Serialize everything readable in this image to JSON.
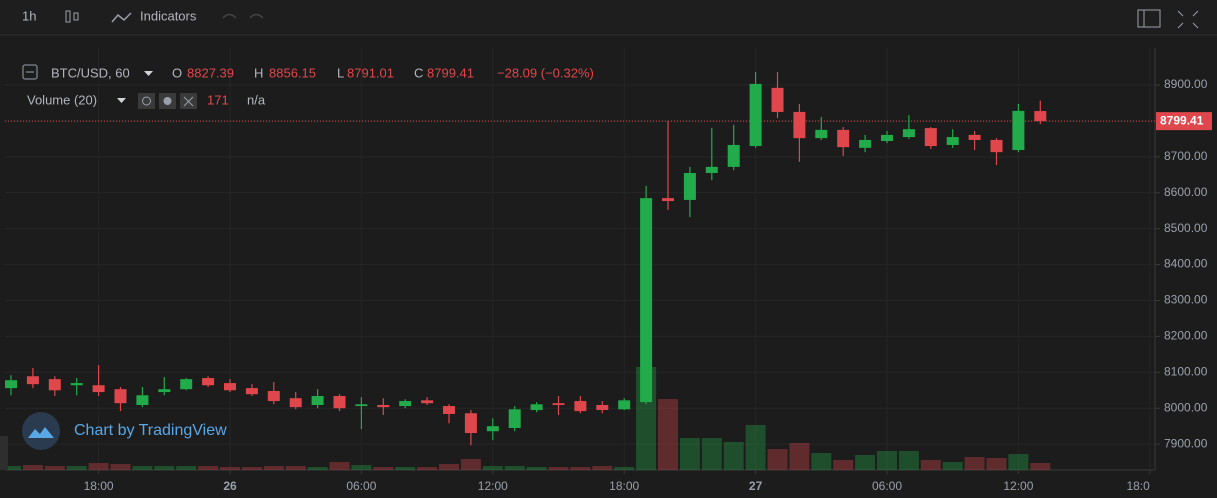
{
  "toolbar": {
    "interval": "1h",
    "indicators": "Indicators"
  },
  "legend": {
    "symbol": "BTC/USD, 60",
    "labels": [
      "O",
      "H",
      "L",
      "C"
    ],
    "change": "−28.09 (−0.32%)",
    "volume_name": "Volume (20)",
    "volume_na": "n/a"
  },
  "watermark": "Chart by TradingView",
  "chart_data": {
    "type": "candlestick",
    "categories": [
      null,
      null,
      null,
      null,
      "18:00",
      null,
      null,
      null,
      null,
      null,
      "26",
      null,
      null,
      null,
      null,
      null,
      "06:00",
      null,
      null,
      null,
      null,
      null,
      "12:00",
      null,
      null,
      null,
      null,
      null,
      "18:00",
      null,
      null,
      null,
      null,
      null,
      "27",
      null,
      null,
      null,
      null,
      null,
      "06:00",
      null,
      null,
      null,
      null,
      null,
      "12:00",
      null,
      null,
      null,
      null,
      null,
      "18:0"
    ],
    "open": [
      8056,
      8089,
      8081,
      8064,
      8064,
      8053,
      8009,
      8045,
      8053,
      8084,
      8070,
      8056,
      8048,
      8028,
      8009,
      8034,
      8006,
      8009,
      8006,
      8022,
      8006,
      7986,
      7936,
      7945,
      7995,
      8014,
      8020,
      8009,
      7997,
      8017,
      8585,
      8580,
      8655,
      8672,
      8730,
      8892,
      8825,
      8752,
      8775,
      8725,
      8744,
      8755,
      8780,
      8733,
      8761,
      8747,
      8719,
      8827.39,
      null,
      null,
      null,
      null,
      null
    ],
    "high": [
      8092,
      8112,
      8089,
      8084,
      8120,
      8059,
      8059,
      8087,
      8084,
      8089,
      8081,
      8067,
      8073,
      8045,
      8053,
      8039,
      8031,
      8028,
      8025,
      8031,
      8011,
      7995,
      7972,
      8006,
      8017,
      8034,
      8034,
      8020,
      8028,
      8619,
      8800,
      8672,
      8780,
      8789,
      8936,
      8936,
      8847,
      8811,
      8783,
      8761,
      8772,
      8816,
      8783,
      8777,
      8772,
      8752,
      8847,
      8856.15,
      null,
      null,
      null,
      null,
      null
    ],
    "low": [
      8036,
      8056,
      8034,
      8036,
      8034,
      7992,
      8003,
      8036,
      8050,
      8059,
      8045,
      8034,
      8011,
      7997,
      8000,
      7992,
      7942,
      7981,
      8000,
      8009,
      7958,
      7897,
      7911,
      7936,
      7989,
      7981,
      7986,
      7986,
      7995,
      8011,
      8552,
      8532,
      8635,
      8663,
      8725,
      8808,
      8686,
      8747,
      8702,
      8713,
      8738,
      8750,
      8722,
      8725,
      8719,
      8677,
      8713,
      8791.01,
      null,
      null,
      null,
      null,
      null
    ],
    "close": [
      8078,
      8067,
      8050,
      8070,
      8045,
      8014,
      8036,
      8053,
      8081,
      8064,
      8050,
      8039,
      8020,
      8003,
      8034,
      8000,
      8011,
      8003,
      8020,
      8014,
      7984,
      7931,
      7950,
      7997,
      8011,
      8009,
      7992,
      7995,
      8022,
      8585,
      8577,
      8655,
      8672,
      8733,
      8903,
      8825,
      8752,
      8775,
      8727,
      8747,
      8761,
      8777,
      8730,
      8755,
      8747,
      8713,
      8828,
      8799.41,
      null,
      null,
      null,
      null,
      null
    ],
    "volume": [
      98,
      122,
      98,
      98,
      171,
      146,
      98,
      98,
      98,
      98,
      73,
      73,
      98,
      98,
      73,
      195,
      122,
      73,
      73,
      73,
      146,
      268,
      98,
      98,
      73,
      73,
      73,
      98,
      73,
      2513,
      1732,
      781,
      781,
      683,
      1098,
      512,
      659,
      415,
      244,
      366,
      464,
      464,
      244,
      195,
      317,
      293,
      390,
      171,
      null,
      null,
      null,
      null,
      null
    ],
    "up_color": "#22ab4b",
    "down_color": "#e0474c",
    "ylim": [
      7828,
      9003
    ],
    "yticks": [
      {
        "value": 7900,
        "label": "7900.00"
      },
      {
        "value": 8000,
        "label": "8000.00"
      },
      {
        "value": 8100,
        "label": "8100.00"
      },
      {
        "value": 8200,
        "label": "8200.00"
      },
      {
        "value": 8300,
        "label": "8300.00"
      },
      {
        "value": 8400,
        "label": "8400.00"
      },
      {
        "value": 8500,
        "label": "8500.00"
      },
      {
        "value": 8600,
        "label": "8600.00"
      },
      {
        "value": 8700,
        "label": "8700.00"
      },
      {
        "value": 8800,
        "label": "8800.00"
      },
      {
        "value": 8900,
        "label": "8900.00"
      }
    ],
    "grid": true
  }
}
